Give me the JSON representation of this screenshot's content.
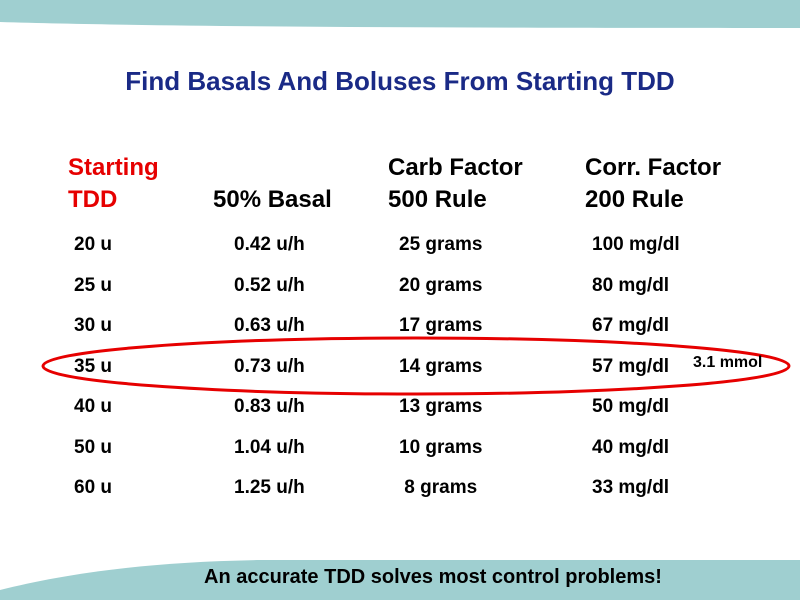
{
  "slide": {
    "title": "Find Basals And Boluses From Starting TDD",
    "headers": {
      "starting": "Starting",
      "tdd": "TDD",
      "basal": "50% Basal",
      "carb_factor": "Carb Factor",
      "rule500": "500 Rule",
      "corr_factor": "Corr. Factor",
      "rule200": "200 Rule"
    },
    "rows": [
      {
        "tdd": "20 u",
        "basal": "0.42 u/h",
        "carb": "25 grams",
        "corr": "100 mg/dl"
      },
      {
        "tdd": "25 u",
        "basal": "0.52 u/h",
        "carb": "20 grams",
        "corr": "80 mg/dl"
      },
      {
        "tdd": "30 u",
        "basal": "0.63 u/h",
        "carb": "17 grams",
        "corr": "67 mg/dl"
      },
      {
        "tdd": "35 u",
        "basal": "0.73 u/h",
        "carb": "14 grams",
        "corr": "57 mg/dl"
      },
      {
        "tdd": "40 u",
        "basal": "0.83 u/h",
        "carb": "13 grams",
        "corr": "50 mg/dl"
      },
      {
        "tdd": "50 u",
        "basal": "1.04 u/h",
        "carb": "10 grams",
        "corr": "40 mg/dl"
      },
      {
        "tdd": "60 u",
        "basal": "1.25 u/h",
        "carb": " 8 grams",
        "corr": "33 mg/dl"
      }
    ],
    "highlight_note": "3.1 mmol",
    "footer": "An accurate TDD solves most control problems!",
    "colors": {
      "title": "#1a2a86",
      "header_accent": "#e60000",
      "highlight_ellipse": "#e60000",
      "wave": "#9fcfd0"
    }
  }
}
